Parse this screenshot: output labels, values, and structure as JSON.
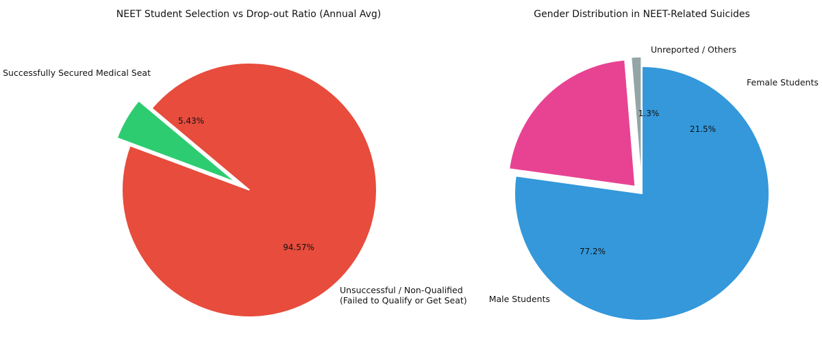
{
  "chart_data": [
    {
      "type": "pie",
      "title": "NEET Student Selection vs Drop-out Ratio (Annual Avg)",
      "slices": [
        {
          "label": "Successfully Secured Medical Seat",
          "value": 5.43,
          "pct_label": "5.43%",
          "color": "#2ecc71",
          "exploded": true
        },
        {
          "label_lines": [
            "Unsuccessful / Non-Qualified",
            "(Failed to Qualify or Get Seat)"
          ],
          "value": 94.57,
          "pct_label": "94.57%",
          "color": "#e74c3c",
          "exploded": false
        }
      ]
    },
    {
      "type": "pie",
      "title": "Gender Distribution in NEET-Related Suicides",
      "slices": [
        {
          "label": "Unreported / Others",
          "value": 1.3,
          "pct_label": "1.3%",
          "color": "#95a5a6",
          "exploded": true
        },
        {
          "label": "Female Students",
          "value": 21.5,
          "pct_label": "21.5%",
          "color": "#e84393",
          "exploded": true
        },
        {
          "label": "Male Students",
          "value": 77.2,
          "pct_label": "77.2%",
          "color": "#3498db",
          "exploded": false
        }
      ]
    }
  ]
}
